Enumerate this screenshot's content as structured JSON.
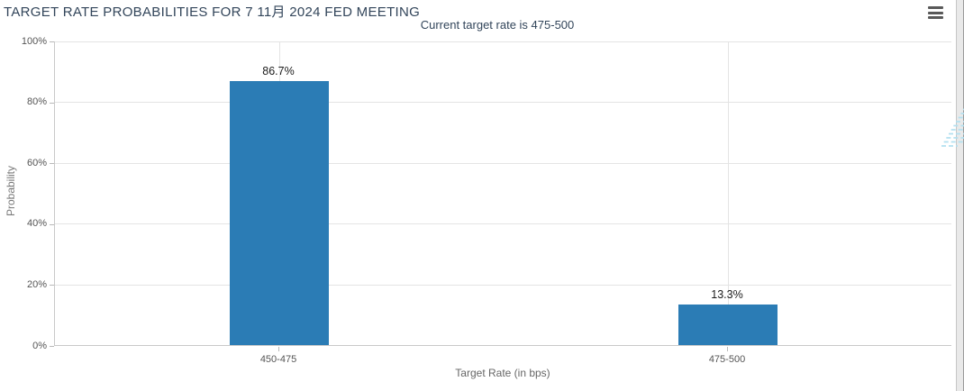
{
  "header": {
    "menu_icon": "hamburger-icon"
  },
  "watermark": {
    "letter": "Q",
    "style": "gray letter Q with light-blue diagonal speed lines"
  },
  "colors": {
    "bar": "#2b7cb5",
    "title_text": "#32455a",
    "grid": "#e4e4e4",
    "axis_line": "#c9c9c9",
    "tick": "#b9b9b9",
    "tick_text": "#555555",
    "axis_title_text": "#6e6e6e",
    "value_label_text": "#1b1b1b",
    "watermark_gray": "#c6c6c6",
    "watermark_blue": "#b3e0f0",
    "menu_icon": "#595959",
    "page_strip": "#e9e9e9"
  },
  "chart_data": {
    "type": "bar",
    "title": "TARGET RATE PROBABILITIES FOR 7 11月 2024 FED MEETING",
    "subtitle": "Current target rate is 475-500",
    "categories": [
      "450-475",
      "475-500"
    ],
    "values": [
      86.7,
      13.3
    ],
    "value_labels": [
      "86.7%",
      "13.3%"
    ],
    "xlabel": "Target Rate (in bps)",
    "ylabel": "Probability",
    "ylim": [
      0,
      100
    ],
    "ytick_step": 20,
    "ytick_labels": [
      "0%",
      "20%",
      "40%",
      "60%",
      "80%",
      "100%"
    ],
    "grid": "horizontal lines every 20%, vertical line at each category center",
    "legend": "none",
    "bar_color": "#2b7cb5"
  }
}
